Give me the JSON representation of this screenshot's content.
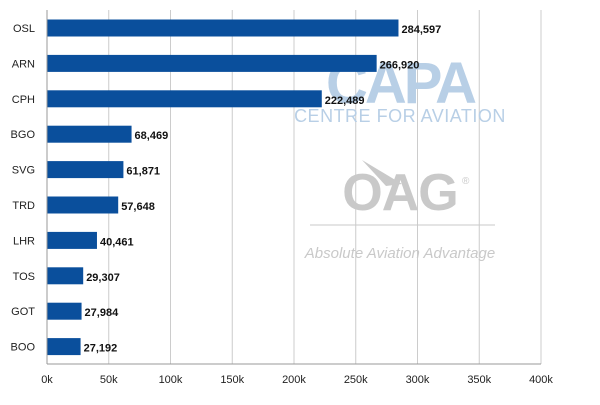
{
  "chart_data": {
    "type": "bar",
    "orientation": "horizontal",
    "categories": [
      "OSL",
      "ARN",
      "CPH",
      "BGO",
      "SVG",
      "TRD",
      "LHR",
      "TOS",
      "GOT",
      "BOO"
    ],
    "values": [
      284597,
      266920,
      222489,
      68469,
      61871,
      57648,
      40461,
      29307,
      27984,
      27192
    ],
    "value_labels": [
      "284,597",
      "266,920",
      "222,489",
      "68,469",
      "61,871",
      "57,648",
      "40,461",
      "29,307",
      "27,984",
      "27,192"
    ],
    "title": "",
    "xlabel": "",
    "ylabel": "",
    "xlim": [
      0,
      400000
    ],
    "x_ticks": [
      0,
      50000,
      100000,
      150000,
      200000,
      250000,
      300000,
      350000,
      400000
    ],
    "x_tick_labels": [
      "0k",
      "50k",
      "100k",
      "150k",
      "200k",
      "250k",
      "300k",
      "350k",
      "400k"
    ],
    "grid": "vertical",
    "legend": "none",
    "bar_color": "#0a4f9c",
    "grid_color": "#cccccc"
  },
  "watermarks": {
    "capa_logo": "CAPA",
    "capa_tagline": "CENTRE FOR AVIATION",
    "capa_color": "#b8cfe6",
    "oag_logo": "OAG",
    "oag_registered": "®",
    "oag_tagline": "Absolute Aviation Advantage",
    "oag_color": "#c9c9c9"
  }
}
